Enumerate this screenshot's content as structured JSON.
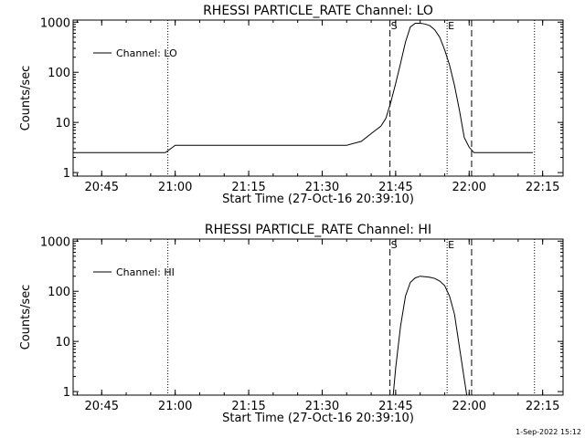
{
  "chart_data": [
    {
      "type": "line",
      "title": "RHESSI PARTICLE_RATE Channel: LO",
      "xlabel": "Start Time (27-Oct-16 20:39:10)",
      "ylabel": "Counts/sec",
      "xlim": [
        "20:39:10",
        "22:19:10"
      ],
      "ylim": [
        0.85,
        1100
      ],
      "yscale": "log",
      "x_ticks": [
        "20:45",
        "21:00",
        "21:15",
        "21:30",
        "21:45",
        "22:00",
        "22:15"
      ],
      "y_ticks": [
        "1",
        "10",
        "100",
        "1000"
      ],
      "legend": "top-left",
      "series": [
        {
          "name": "Channel: LO",
          "x": [
            "20:39:10",
            "20:45",
            "20:50",
            "20:55",
            "20:58",
            "21:00",
            "21:05",
            "21:10",
            "21:15",
            "21:20",
            "21:25",
            "21:30",
            "21:35",
            "21:38",
            "21:40",
            "21:42",
            "21:43",
            "21:44",
            "21:45",
            "21:46",
            "21:47",
            "21:48",
            "21:49",
            "21:50",
            "21:51",
            "21:52",
            "21:53",
            "21:54",
            "21:55",
            "21:56",
            "21:57",
            "21:58",
            "21:59",
            "22:00",
            "22:01",
            "22:03",
            "22:05",
            "22:10",
            "22:13"
          ],
          "values": [
            2.5,
            2.5,
            2.5,
            2.5,
            2.5,
            3.5,
            3.5,
            3.5,
            3.5,
            3.5,
            3.5,
            3.5,
            3.5,
            4.2,
            6.0,
            8.5,
            12,
            25,
            60,
            150,
            400,
            800,
            950,
            950,
            920,
            850,
            700,
            500,
            280,
            140,
            55,
            18,
            5,
            3.2,
            2.5,
            2.5,
            2.5,
            2.5,
            2.5
          ]
        }
      ],
      "vlines_dotted": [
        "20:58:30",
        "22:13:20"
      ],
      "vlines_dashed": [
        "21:43:50",
        "22:00:30"
      ],
      "vline_solid": "21:55:30",
      "markers": [
        {
          "label": "S",
          "x": "21:43:50"
        },
        {
          "label": "E",
          "x": "21:55:30"
        }
      ]
    },
    {
      "type": "line",
      "title": "RHESSI PARTICLE_RATE Channel: HI",
      "xlabel": "Start Time (27-Oct-16 20:39:10)",
      "ylabel": "Counts/sec",
      "xlim": [
        "20:39:10",
        "22:19:10"
      ],
      "ylim": [
        0.85,
        1100
      ],
      "yscale": "log",
      "x_ticks": [
        "20:45",
        "21:00",
        "21:15",
        "21:30",
        "21:45",
        "22:00",
        "22:15"
      ],
      "y_ticks": [
        "1",
        "10",
        "100",
        "1000"
      ],
      "legend": "top-left",
      "series": [
        {
          "name": "Channel: HI",
          "x": [
            "21:44:30",
            "21:45",
            "21:46",
            "21:47",
            "21:48",
            "21:49",
            "21:50",
            "21:51",
            "21:52",
            "21:53",
            "21:54",
            "21:55",
            "21:56",
            "21:57",
            "21:58",
            "21:59:30"
          ],
          "values": [
            0.85,
            3,
            20,
            80,
            150,
            185,
            200,
            195,
            190,
            180,
            160,
            130,
            80,
            35,
            8,
            0.85
          ]
        }
      ],
      "vlines_dotted": [
        "20:58:30",
        "22:13:20"
      ],
      "vlines_dashed": [
        "21:43:50",
        "22:00:30"
      ],
      "vline_solid": "21:55:30",
      "markers": [
        {
          "label": "S",
          "x": "21:43:50"
        },
        {
          "label": "E",
          "x": "21:55:30"
        }
      ]
    }
  ],
  "footer_date": "1-Sep-2022 15:12"
}
